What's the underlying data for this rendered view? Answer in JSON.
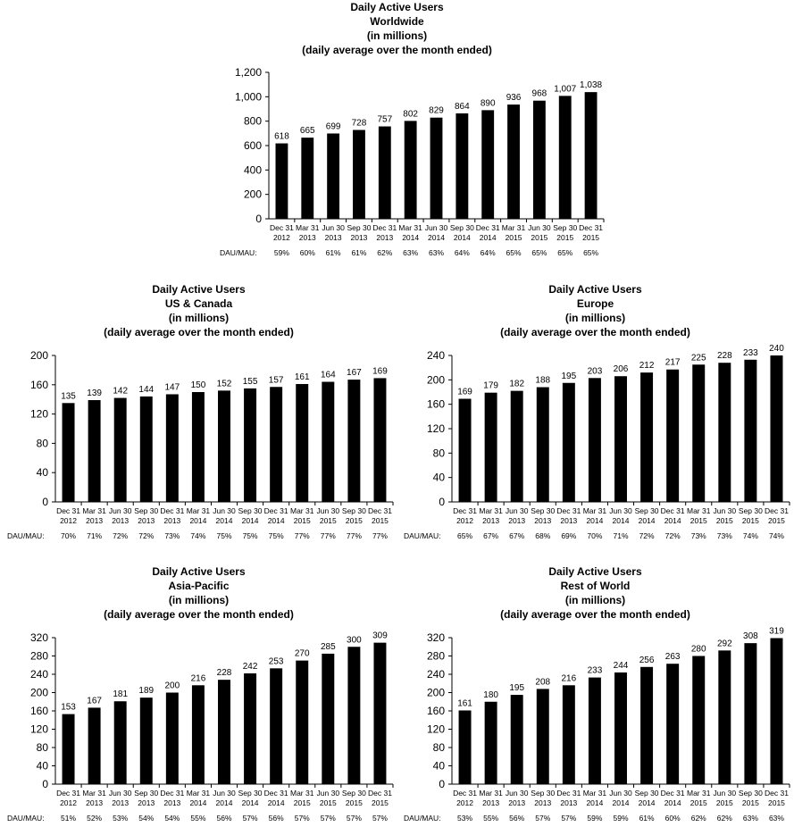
{
  "chart_data": [
    {
      "id": "ww",
      "type": "bar",
      "title_lines": [
        "Daily Active Users",
        "Worldwide",
        "(in millions)",
        "(daily average over the month ended)"
      ],
      "categories": [
        [
          "Dec 31",
          "2012"
        ],
        [
          "Mar 31",
          "2013"
        ],
        [
          "Jun 30",
          "2013"
        ],
        [
          "Sep 30",
          "2013"
        ],
        [
          "Dec 31",
          "2013"
        ],
        [
          "Mar 31",
          "2014"
        ],
        [
          "Jun 30",
          "2014"
        ],
        [
          "Sep 30",
          "2014"
        ],
        [
          "Dec 31",
          "2014"
        ],
        [
          "Mar 31",
          "2015"
        ],
        [
          "Jun 30",
          "2015"
        ],
        [
          "Sep 30",
          "2015"
        ],
        [
          "Dec 31",
          "2015"
        ]
      ],
      "values": [
        618,
        665,
        699,
        728,
        757,
        802,
        829,
        864,
        890,
        936,
        968,
        1007,
        1038
      ],
      "value_labels": [
        "618",
        "665",
        "699",
        "728",
        "757",
        "802",
        "829",
        "864",
        "890",
        "936",
        "968",
        "1,007",
        "1,038"
      ],
      "ylim": [
        0,
        1200
      ],
      "yticks": [
        0,
        200,
        400,
        600,
        800,
        1000,
        1200
      ],
      "ytick_labels": [
        "0",
        "200",
        "400",
        "600",
        "800",
        "1,000",
        "1,200"
      ],
      "dau_mau_label": "DAU/MAU:",
      "dau_mau": [
        "59%",
        "60%",
        "61%",
        "61%",
        "62%",
        "63%",
        "63%",
        "64%",
        "64%",
        "65%",
        "65%",
        "65%",
        "65%"
      ]
    },
    {
      "id": "us",
      "type": "bar",
      "title_lines": [
        "Daily Active Users",
        "US & Canada",
        "(in millions)",
        "(daily average over the month ended)"
      ],
      "categories": [
        [
          "Dec 31",
          "2012"
        ],
        [
          "Mar 31",
          "2013"
        ],
        [
          "Jun 30",
          "2013"
        ],
        [
          "Sep 30",
          "2013"
        ],
        [
          "Dec 31",
          "2013"
        ],
        [
          "Mar 31",
          "2014"
        ],
        [
          "Jun 30",
          "2014"
        ],
        [
          "Sep 30",
          "2014"
        ],
        [
          "Dec 31",
          "2014"
        ],
        [
          "Mar 31",
          "2015"
        ],
        [
          "Jun 30",
          "2015"
        ],
        [
          "Sep 30",
          "2015"
        ],
        [
          "Dec 31",
          "2015"
        ]
      ],
      "values": [
        135,
        139,
        142,
        144,
        147,
        150,
        152,
        155,
        157,
        161,
        164,
        167,
        169
      ],
      "value_labels": [
        "135",
        "139",
        "142",
        "144",
        "147",
        "150",
        "152",
        "155",
        "157",
        "161",
        "164",
        "167",
        "169"
      ],
      "ylim": [
        0,
        200
      ],
      "yticks": [
        0,
        40,
        80,
        120,
        160,
        200
      ],
      "ytick_labels": [
        "0",
        "40",
        "80",
        "120",
        "160",
        "200"
      ],
      "dau_mau_label": "DAU/MAU:",
      "dau_mau": [
        "70%",
        "71%",
        "72%",
        "72%",
        "73%",
        "74%",
        "75%",
        "75%",
        "75%",
        "77%",
        "77%",
        "77%",
        "77%"
      ]
    },
    {
      "id": "eu",
      "type": "bar",
      "title_lines": [
        "Daily Active Users",
        "Europe",
        "(in millions)",
        "(daily average over the month ended)"
      ],
      "categories": [
        [
          "Dec 31",
          "2012"
        ],
        [
          "Mar 31",
          "2013"
        ],
        [
          "Jun 30",
          "2013"
        ],
        [
          "Sep 30",
          "2013"
        ],
        [
          "Dec 31",
          "2013"
        ],
        [
          "Mar 31",
          "2014"
        ],
        [
          "Jun 30",
          "2014"
        ],
        [
          "Sep 30",
          "2014"
        ],
        [
          "Dec 31",
          "2014"
        ],
        [
          "Mar 31",
          "2015"
        ],
        [
          "Jun 30",
          "2015"
        ],
        [
          "Sep 30",
          "2015"
        ],
        [
          "Dec 31",
          "2015"
        ]
      ],
      "values": [
        169,
        179,
        182,
        188,
        195,
        203,
        206,
        212,
        217,
        225,
        228,
        233,
        240
      ],
      "value_labels": [
        "169",
        "179",
        "182",
        "188",
        "195",
        "203",
        "206",
        "212",
        "217",
        "225",
        "228",
        "233",
        "240"
      ],
      "ylim": [
        0,
        240
      ],
      "yticks": [
        0,
        40,
        80,
        120,
        160,
        200,
        240
      ],
      "ytick_labels": [
        "0",
        "40",
        "80",
        "120",
        "160",
        "200",
        "240"
      ],
      "dau_mau_label": "DAU/MAU:",
      "dau_mau": [
        "65%",
        "67%",
        "67%",
        "68%",
        "69%",
        "70%",
        "71%",
        "72%",
        "72%",
        "73%",
        "73%",
        "74%",
        "74%"
      ]
    },
    {
      "id": "ap",
      "type": "bar",
      "title_lines": [
        "Daily Active Users",
        "Asia-Pacific",
        "(in millions)",
        "(daily average over the month ended)"
      ],
      "categories": [
        [
          "Dec 31",
          "2012"
        ],
        [
          "Mar 31",
          "2013"
        ],
        [
          "Jun 30",
          "2013"
        ],
        [
          "Sep 30",
          "2013"
        ],
        [
          "Dec 31",
          "2013"
        ],
        [
          "Mar 31",
          "2014"
        ],
        [
          "Jun 30",
          "2014"
        ],
        [
          "Sep 30",
          "2014"
        ],
        [
          "Dec 31",
          "2014"
        ],
        [
          "Mar 31",
          "2015"
        ],
        [
          "Jun 30",
          "2015"
        ],
        [
          "Sep 30",
          "2015"
        ],
        [
          "Dec 31",
          "2015"
        ]
      ],
      "values": [
        153,
        167,
        181,
        189,
        200,
        216,
        228,
        242,
        253,
        270,
        285,
        300,
        309
      ],
      "value_labels": [
        "153",
        "167",
        "181",
        "189",
        "200",
        "216",
        "228",
        "242",
        "253",
        "270",
        "285",
        "300",
        "309"
      ],
      "ylim": [
        0,
        320
      ],
      "yticks": [
        0,
        40,
        80,
        120,
        160,
        200,
        240,
        280,
        320
      ],
      "ytick_labels": [
        "0",
        "40",
        "80",
        "120",
        "160",
        "200",
        "240",
        "280",
        "320"
      ],
      "dau_mau_label": "DAU/MAU:",
      "dau_mau": [
        "51%",
        "52%",
        "53%",
        "54%",
        "54%",
        "55%",
        "56%",
        "57%",
        "56%",
        "57%",
        "57%",
        "57%",
        "57%"
      ]
    },
    {
      "id": "rw",
      "type": "bar",
      "title_lines": [
        "Daily Active Users",
        "Rest of World",
        "(in millions)",
        "(daily average over the month ended)"
      ],
      "categories": [
        [
          "Dec 31",
          "2012"
        ],
        [
          "Mar 31",
          "2013"
        ],
        [
          "Jun 30",
          "2013"
        ],
        [
          "Sep 30",
          "2013"
        ],
        [
          "Dec 31",
          "2013"
        ],
        [
          "Mar 31",
          "2014"
        ],
        [
          "Jun 30",
          "2014"
        ],
        [
          "Sep 30",
          "2014"
        ],
        [
          "Dec 31",
          "2014"
        ],
        [
          "Mar 31",
          "2015"
        ],
        [
          "Jun 30",
          "2015"
        ],
        [
          "Sep 30",
          "2015"
        ],
        [
          "Dec 31",
          "2015"
        ]
      ],
      "values": [
        161,
        180,
        195,
        208,
        216,
        233,
        244,
        256,
        263,
        280,
        292,
        308,
        319
      ],
      "value_labels": [
        "161",
        "180",
        "195",
        "208",
        "216",
        "233",
        "244",
        "256",
        "263",
        "280",
        "292",
        "308",
        "319"
      ],
      "ylim": [
        0,
        320
      ],
      "yticks": [
        0,
        40,
        80,
        120,
        160,
        200,
        240,
        280,
        320
      ],
      "ytick_labels": [
        "0",
        "40",
        "80",
        "120",
        "160",
        "200",
        "240",
        "280",
        "320"
      ],
      "dau_mau_label": "DAU/MAU:",
      "dau_mau": [
        "53%",
        "55%",
        "56%",
        "57%",
        "57%",
        "59%",
        "59%",
        "61%",
        "60%",
        "62%",
        "62%",
        "63%",
        "63%"
      ]
    }
  ],
  "colors": {
    "bar": "#000000",
    "axis": "#000000",
    "background": "#ffffff"
  }
}
